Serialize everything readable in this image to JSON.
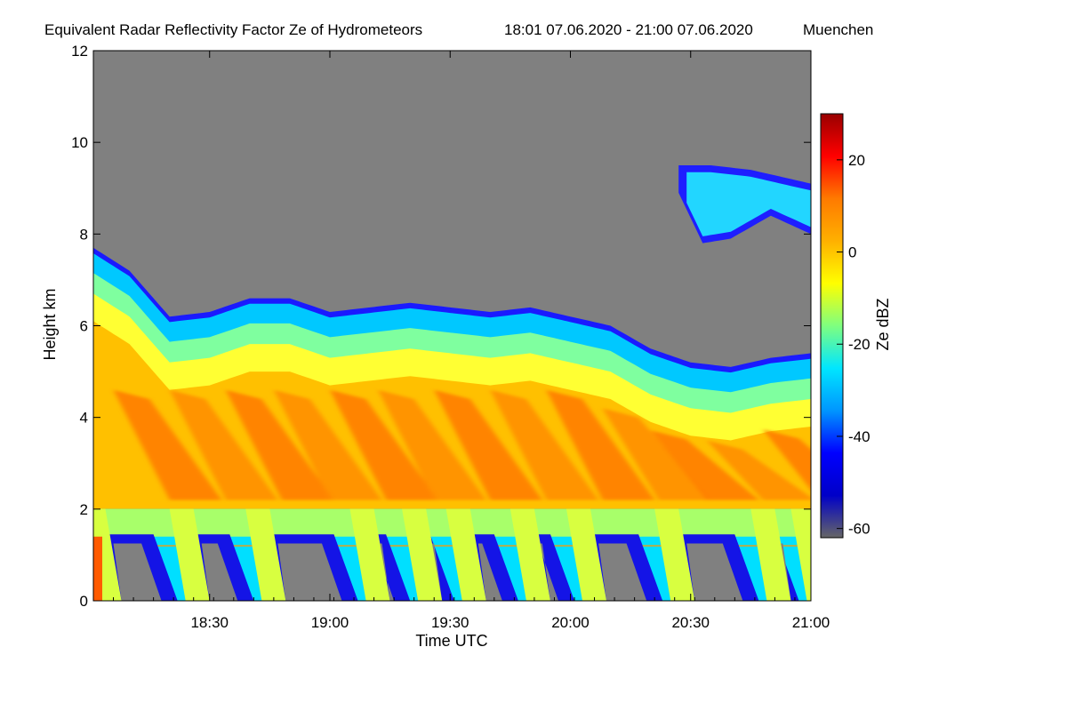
{
  "chart_data": {
    "type": "heatmap",
    "title": "Equivalent Radar Reflectivity Factor Ze of Hydrometeors",
    "time_range_text": "18:01 07.06.2020 - 21:00 07.06.2020",
    "location": "Muenchen",
    "xlabel": "Time UTC",
    "ylabel": "Height km",
    "colorbar_label": "Ze dBZ",
    "x_range_minutes_utc": [
      1081,
      1260
    ],
    "ylim": [
      0,
      12
    ],
    "x_ticks": [
      {
        "label": "18:30",
        "value": 1110
      },
      {
        "label": "19:00",
        "value": 1140
      },
      {
        "label": "19:30",
        "value": 1170
      },
      {
        "label": "20:00",
        "value": 1200
      },
      {
        "label": "20:30",
        "value": 1230
      },
      {
        "label": "21:00",
        "value": 1260
      }
    ],
    "y_ticks": [
      {
        "label": "0",
        "value": 0
      },
      {
        "label": "2",
        "value": 2
      },
      {
        "label": "4",
        "value": 4
      },
      {
        "label": "6",
        "value": 6
      },
      {
        "label": "8",
        "value": 8
      },
      {
        "label": "10",
        "value": 10
      },
      {
        "label": "12",
        "value": 12
      }
    ],
    "colorbar_range": [
      -62,
      30
    ],
    "colorbar_ticks": [
      {
        "label": "20",
        "value": 20
      },
      {
        "label": "0",
        "value": 0
      },
      {
        "label": "-20",
        "value": -20
      },
      {
        "label": "-40",
        "value": -40
      },
      {
        "label": "-60",
        "value": -60
      }
    ],
    "colormap": [
      "#666666",
      "#0000c8",
      "#0000ff",
      "#0096ff",
      "#00e6ff",
      "#7fff7f",
      "#ffff00",
      "#ffb000",
      "#ff7a00",
      "#ff0000",
      "#990000"
    ],
    "no_signal_color": "#808080",
    "main_cloud_top_km": [
      [
        1081,
        7.7
      ],
      [
        1090,
        7.2
      ],
      [
        1100,
        6.2
      ],
      [
        1110,
        6.3
      ],
      [
        1120,
        6.6
      ],
      [
        1130,
        6.6
      ],
      [
        1140,
        6.3
      ],
      [
        1150,
        6.4
      ],
      [
        1160,
        6.5
      ],
      [
        1170,
        6.4
      ],
      [
        1180,
        6.3
      ],
      [
        1190,
        6.4
      ],
      [
        1200,
        6.2
      ],
      [
        1210,
        6.0
      ],
      [
        1220,
        5.5
      ],
      [
        1230,
        5.2
      ],
      [
        1240,
        5.1
      ],
      [
        1250,
        5.3
      ],
      [
        1260,
        5.4
      ]
    ],
    "upper_cloud_layer": {
      "time_range": [
        1227,
        1260
      ],
      "top_km": [
        [
          1227,
          9.5
        ],
        [
          1235,
          9.5
        ],
        [
          1245,
          9.4
        ],
        [
          1260,
          9.1
        ]
      ],
      "base_km": [
        [
          1227,
          8.9
        ],
        [
          1233,
          7.8
        ],
        [
          1240,
          7.9
        ],
        [
          1250,
          8.4
        ],
        [
          1260,
          8.0
        ]
      ]
    },
    "melting_layer_km": 2.0,
    "rain_shafts_minutes_utc": [
      1081,
      1103,
      1122,
      1148,
      1161,
      1172,
      1188,
      1202,
      1224,
      1248,
      1258
    ]
  }
}
